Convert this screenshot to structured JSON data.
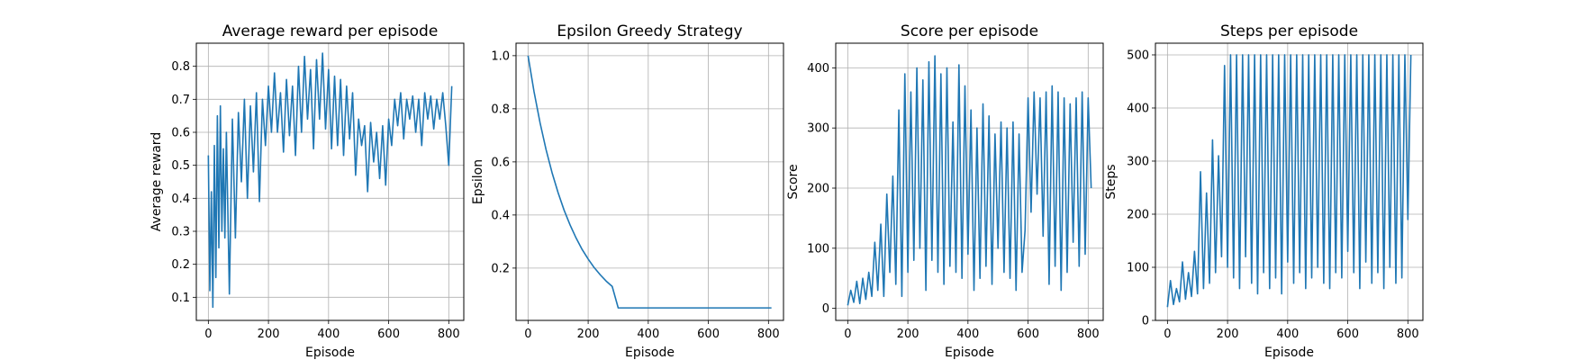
{
  "figure": {
    "grid": true,
    "line_color": "#1f77b4"
  },
  "chart_data": [
    {
      "type": "line",
      "title": "Average reward per episode",
      "xlabel": "Episode",
      "ylabel": "Average reward",
      "xlim": [
        -40,
        850
      ],
      "ylim": [
        0.03,
        0.87
      ],
      "xticks": [
        0,
        200,
        400,
        600,
        800
      ],
      "yticks": [
        0.1,
        0.2,
        0.3,
        0.4,
        0.5,
        0.6,
        0.7,
        0.8
      ],
      "ytick_decimals": 1,
      "series": [
        {
          "x": [
            0,
            5,
            10,
            15,
            20,
            25,
            30,
            35,
            40,
            45,
            50,
            55,
            60,
            70,
            80,
            90,
            100,
            110,
            120,
            130,
            140,
            150,
            160,
            170,
            180,
            190,
            200,
            210,
            220,
            230,
            240,
            250,
            260,
            270,
            280,
            290,
            300,
            310,
            320,
            330,
            340,
            350,
            360,
            370,
            380,
            390,
            400,
            410,
            420,
            430,
            440,
            450,
            460,
            470,
            480,
            490,
            500,
            510,
            520,
            530,
            540,
            550,
            560,
            570,
            580,
            590,
            600,
            610,
            620,
            630,
            640,
            650,
            660,
            670,
            680,
            690,
            700,
            710,
            720,
            730,
            740,
            750,
            760,
            770,
            780,
            790,
            800,
            810
          ],
          "y": [
            0.53,
            0.12,
            0.42,
            0.07,
            0.56,
            0.16,
            0.65,
            0.25,
            0.68,
            0.3,
            0.55,
            0.28,
            0.6,
            0.11,
            0.64,
            0.28,
            0.66,
            0.45,
            0.7,
            0.4,
            0.68,
            0.48,
            0.72,
            0.39,
            0.7,
            0.56,
            0.74,
            0.6,
            0.78,
            0.6,
            0.72,
            0.54,
            0.76,
            0.59,
            0.74,
            0.53,
            0.8,
            0.6,
            0.83,
            0.64,
            0.79,
            0.55,
            0.82,
            0.64,
            0.84,
            0.61,
            0.79,
            0.55,
            0.77,
            0.56,
            0.76,
            0.53,
            0.74,
            0.58,
            0.72,
            0.47,
            0.64,
            0.56,
            0.62,
            0.42,
            0.63,
            0.51,
            0.6,
            0.46,
            0.62,
            0.44,
            0.64,
            0.56,
            0.7,
            0.62,
            0.72,
            0.58,
            0.7,
            0.64,
            0.71,
            0.6,
            0.7,
            0.56,
            0.72,
            0.64,
            0.71,
            0.61,
            0.7,
            0.64,
            0.72,
            0.62,
            0.5,
            0.74
          ]
        }
      ]
    },
    {
      "type": "line",
      "title": "Epsilon Greedy Strategy",
      "xlabel": "Episode",
      "ylabel": "Epsilon",
      "xlim": [
        -40,
        850
      ],
      "ylim": [
        0.003,
        1.047
      ],
      "xticks": [
        0,
        200,
        400,
        600,
        800
      ],
      "yticks": [
        0.2,
        0.4,
        0.6,
        0.8,
        1.0
      ],
      "ytick_decimals": 1,
      "series": [
        {
          "x": [
            0,
            20,
            40,
            60,
            80,
            100,
            120,
            140,
            160,
            180,
            200,
            220,
            240,
            260,
            280,
            300,
            350,
            400,
            500,
            600,
            700,
            810
          ],
          "y": [
            1.0,
            0.864,
            0.747,
            0.646,
            0.559,
            0.484,
            0.418,
            0.362,
            0.313,
            0.27,
            0.234,
            0.202,
            0.175,
            0.151,
            0.131,
            0.05,
            0.05,
            0.05,
            0.05,
            0.05,
            0.05,
            0.05
          ]
        }
      ]
    },
    {
      "type": "line",
      "title": "Score per episode",
      "xlabel": "Episode",
      "ylabel": "Score",
      "xlim": [
        -40,
        850
      ],
      "ylim": [
        -20,
        441
      ],
      "xticks": [
        0,
        200,
        400,
        600,
        800
      ],
      "yticks": [
        0,
        100,
        200,
        300,
        400
      ],
      "ytick_decimals": 0,
      "series": [
        {
          "x": [
            0,
            10,
            20,
            30,
            40,
            50,
            60,
            70,
            80,
            90,
            100,
            110,
            120,
            130,
            140,
            150,
            160,
            170,
            180,
            190,
            200,
            210,
            220,
            230,
            240,
            250,
            260,
            270,
            280,
            290,
            300,
            310,
            320,
            330,
            340,
            350,
            360,
            370,
            380,
            390,
            400,
            410,
            420,
            430,
            440,
            450,
            460,
            470,
            480,
            490,
            500,
            510,
            520,
            530,
            540,
            550,
            560,
            570,
            580,
            590,
            600,
            610,
            620,
            630,
            640,
            650,
            660,
            670,
            680,
            690,
            700,
            710,
            720,
            730,
            740,
            750,
            760,
            770,
            780,
            790,
            800,
            810
          ],
          "y": [
            5,
            30,
            10,
            45,
            8,
            50,
            15,
            60,
            20,
            110,
            30,
            140,
            20,
            190,
            60,
            220,
            40,
            330,
            20,
            390,
            60,
            360,
            80,
            400,
            100,
            380,
            30,
            410,
            80,
            420,
            60,
            390,
            40,
            400,
            70,
            310,
            60,
            405,
            50,
            370,
            90,
            330,
            30,
            300,
            50,
            340,
            70,
            320,
            40,
            290,
            100,
            310,
            60,
            300,
            50,
            310,
            30,
            290,
            60,
            130,
            350,
            160,
            360,
            190,
            350,
            120,
            360,
            40,
            370,
            70,
            360,
            30,
            350,
            60,
            340,
            110,
            350,
            70,
            360,
            90,
            350,
            200
          ]
        }
      ]
    },
    {
      "type": "line",
      "title": "Steps per episode",
      "xlabel": "Episode",
      "ylabel": "Steps",
      "xlim": [
        -40,
        850
      ],
      "ylim": [
        0,
        522
      ],
      "xticks": [
        0,
        200,
        400,
        600,
        800
      ],
      "yticks": [
        0,
        100,
        200,
        300,
        400,
        500
      ],
      "ytick_decimals": 0,
      "series": [
        {
          "x": [
            0,
            10,
            20,
            30,
            40,
            50,
            60,
            70,
            80,
            90,
            100,
            110,
            120,
            130,
            140,
            150,
            160,
            170,
            180,
            190,
            200,
            210,
            220,
            230,
            240,
            250,
            260,
            270,
            280,
            290,
            300,
            310,
            320,
            330,
            340,
            350,
            360,
            370,
            380,
            390,
            400,
            410,
            420,
            430,
            440,
            450,
            460,
            470,
            480,
            490,
            500,
            510,
            520,
            530,
            540,
            550,
            560,
            570,
            580,
            590,
            600,
            610,
            620,
            630,
            640,
            650,
            660,
            670,
            680,
            690,
            700,
            710,
            720,
            730,
            740,
            750,
            760,
            770,
            780,
            790,
            800,
            810
          ],
          "y": [
            25,
            75,
            30,
            60,
            35,
            110,
            40,
            90,
            45,
            130,
            50,
            280,
            60,
            240,
            70,
            340,
            90,
            310,
            120,
            480,
            100,
            500,
            80,
            500,
            60,
            500,
            120,
            500,
            70,
            500,
            50,
            500,
            90,
            500,
            60,
            500,
            80,
            500,
            50,
            500,
            110,
            500,
            70,
            500,
            90,
            500,
            60,
            500,
            80,
            500,
            100,
            500,
            70,
            500,
            60,
            500,
            90,
            500,
            80,
            500,
            130,
            500,
            90,
            500,
            60,
            500,
            110,
            500,
            70,
            500,
            90,
            500,
            60,
            500,
            100,
            500,
            70,
            500,
            80,
            500,
            190,
            500
          ]
        }
      ]
    }
  ]
}
